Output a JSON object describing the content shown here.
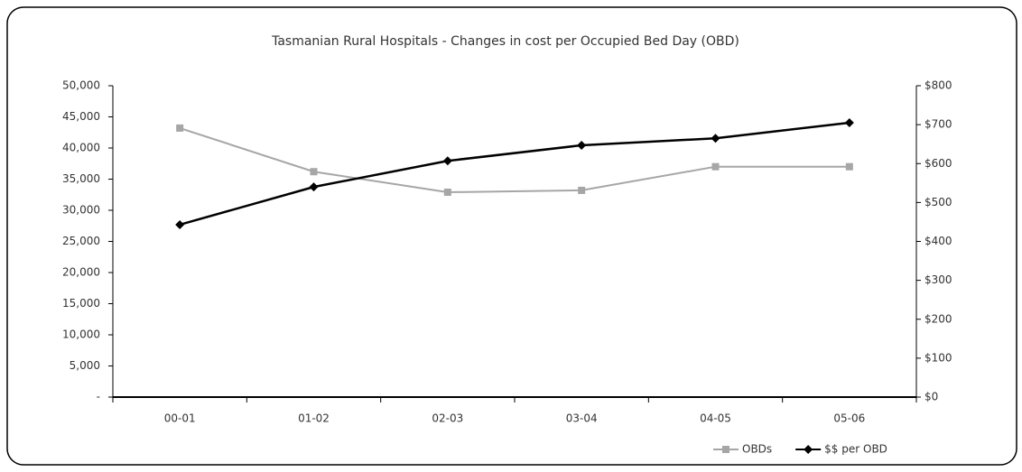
{
  "chart_data": {
    "type": "line",
    "title": "Tasmanian Rural Hospitals - Changes in cost per Occupied Bed Day (OBD)",
    "categories": [
      "00-01",
      "01-02",
      "02-03",
      "03-04",
      "04-05",
      "05-06"
    ],
    "series": [
      {
        "name": "OBDs",
        "color": "#a6a6a6",
        "marker": "square",
        "values": [
          43200,
          36200,
          32900,
          33200,
          37000,
          37000
        ]
      },
      {
        "name": "$$ per OBD",
        "color": "#000000",
        "marker": "diamond",
        "axis": "y2",
        "values": [
          443,
          540,
          607,
          647,
          665,
          705
        ]
      }
    ],
    "ylim": [
      0,
      50000
    ],
    "yticks": [
      {
        "value": 0,
        "label": "-"
      },
      {
        "value": 5000,
        "label": "5,000"
      },
      {
        "value": 10000,
        "label": "10,000"
      },
      {
        "value": 15000,
        "label": "15,000"
      },
      {
        "value": 20000,
        "label": "20,000"
      },
      {
        "value": 25000,
        "label": "25,000"
      },
      {
        "value": 30000,
        "label": "30,000"
      },
      {
        "value": 35000,
        "label": "35,000"
      },
      {
        "value": 40000,
        "label": "40,000"
      },
      {
        "value": 45000,
        "label": "45,000"
      },
      {
        "value": 50000,
        "label": "50,000"
      }
    ],
    "y2lim": [
      0,
      800
    ],
    "y2ticks": [
      {
        "value": 0,
        "label": "$0"
      },
      {
        "value": 100,
        "label": "$100"
      },
      {
        "value": 200,
        "label": "$200"
      },
      {
        "value": 300,
        "label": "$300"
      },
      {
        "value": 400,
        "label": "$400"
      },
      {
        "value": 500,
        "label": "$500"
      },
      {
        "value": 600,
        "label": "$600"
      },
      {
        "value": 700,
        "label": "$700"
      },
      {
        "value": 800,
        "label": "$800"
      }
    ],
    "legend": "bottom-right"
  }
}
